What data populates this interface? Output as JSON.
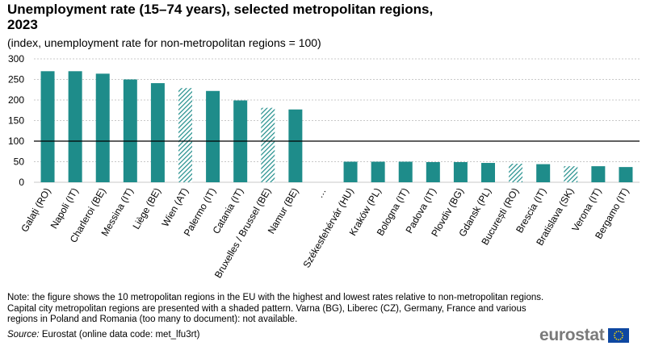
{
  "title": "Unemployment rate (15–74 years), selected metropolitan regions, 2023",
  "subtitle": "(index, unemployment  rate for non-metropolitan  regions = 100)",
  "note": "Note: the figure shows the 10 metropolitan regions in the EU with the highest and lowest rates relative to non-metropolitan regions. Capital city metropolitan regions are presented with a shaded pattern. Varna (BG), Liberec (CZ), Germany,  France and various regions in Poland and Romania (too many to document):  not available.",
  "source_label": "Source:",
  "source_text": " Eurostat (online data code: met_lfu3rt)",
  "logo_text": "eurostat",
  "colors": {
    "bar": "#1e8c8a",
    "grid": "#b7b7b7",
    "reference_line": "#000000",
    "text": "#000000",
    "logo": "#7a7a7a",
    "flag_blue": "#0e47a1",
    "flag_star": "#ffdd00"
  },
  "chart_data": {
    "type": "bar",
    "title": "Unemployment rate (15–74 years), selected metropolitan regions, 2023",
    "xlabel": "",
    "ylabel": "",
    "ylim": [
      0,
      300
    ],
    "yticks": [
      0,
      50,
      100,
      150,
      200,
      250,
      300
    ],
    "reference_line": 100,
    "grid": true,
    "categories": [
      "Galați (RO)",
      "Napoli (IT)",
      "Charleroi (BE)",
      "Messina (IT)",
      "Liège (BE)",
      "Wien (AT)",
      "Palermo (IT)",
      "Catania (IT)",
      "Bruxelles / Brussel (BE)",
      "Namur (BE)",
      "…",
      "Székesfehérvár (HU)",
      "Kraków (PL)",
      "Bologna (IT)",
      "Padova (IT)",
      "Plovdiv (BG)",
      "Gdansk (PL)",
      "București (RO)",
      "Brescia (IT)",
      "Bratislava (SK)",
      "Verona (IT)",
      "Bergamo (IT)"
    ],
    "values": [
      270,
      270,
      264,
      250,
      241,
      229,
      222,
      199,
      181,
      177,
      null,
      50,
      50,
      50,
      49,
      49,
      47,
      45,
      44,
      39,
      39,
      37
    ],
    "capital_shaded": [
      false,
      false,
      false,
      false,
      false,
      true,
      false,
      false,
      true,
      false,
      false,
      false,
      false,
      false,
      false,
      false,
      false,
      true,
      false,
      true,
      false,
      false
    ]
  }
}
